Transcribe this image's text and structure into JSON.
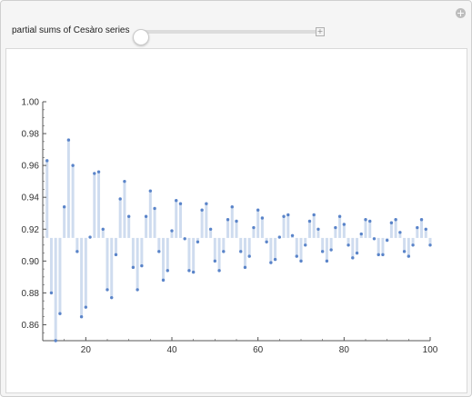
{
  "control": {
    "label": "partial sums of Cesàro series",
    "slider_value_fraction": 0.0
  },
  "icons": {
    "corner": "plus-circle-icon",
    "slider_increment": "plus-icon"
  },
  "colors": {
    "points": "#5a84c9",
    "stems": "#cfdcef",
    "axis": "#555555"
  },
  "chart_data": {
    "type": "scatter",
    "title": "",
    "xlabel": "",
    "ylabel": "",
    "xlim": [
      10,
      100
    ],
    "ylim": [
      0.85,
      1.0
    ],
    "baseline": 0.9145,
    "grid": false,
    "x_ticks": [
      20,
      40,
      60,
      80,
      100
    ],
    "y_ticks": [
      0.86,
      0.88,
      0.9,
      0.92,
      0.94,
      0.96,
      0.98,
      1.0
    ],
    "x_tick_labels": [
      "20",
      "40",
      "60",
      "80",
      "100"
    ],
    "y_tick_labels": [
      "0.86",
      "0.88",
      "0.90",
      "0.92",
      "0.94",
      "0.96",
      "0.98",
      "1.00"
    ],
    "series": [
      {
        "x": [
          11,
          12,
          13,
          14,
          15,
          16,
          17,
          18,
          19,
          20,
          21,
          22,
          23,
          24,
          25,
          26,
          27,
          28,
          29,
          30,
          31,
          32,
          33,
          34,
          35,
          36,
          37,
          38,
          39,
          40,
          41,
          42,
          43,
          44,
          45,
          46,
          47,
          48,
          49,
          50,
          51,
          52,
          53,
          54,
          55,
          56,
          57,
          58,
          59,
          60,
          61,
          62,
          63,
          64,
          65,
          66,
          67,
          68,
          69,
          70,
          71,
          72,
          73,
          74,
          75,
          76,
          77,
          78,
          79,
          80,
          81,
          82,
          83,
          84,
          85,
          86,
          87,
          88,
          89,
          90,
          91,
          92,
          93,
          94,
          95,
          96,
          97,
          98,
          99,
          100
        ],
        "y": [
          0.963,
          0.88,
          0.85,
          0.867,
          0.934,
          0.976,
          0.96,
          0.906,
          0.865,
          0.871,
          0.915,
          0.955,
          0.956,
          0.92,
          0.882,
          0.877,
          0.904,
          0.939,
          0.95,
          0.928,
          0.896,
          0.882,
          0.897,
          0.928,
          0.944,
          0.933,
          0.906,
          0.888,
          0.894,
          0.919,
          0.938,
          0.936,
          0.914,
          0.894,
          0.893,
          0.912,
          0.932,
          0.936,
          0.92,
          0.9,
          0.894,
          0.906,
          0.926,
          0.934,
          0.925,
          0.906,
          0.896,
          0.903,
          0.921,
          0.932,
          0.927,
          0.912,
          0.899,
          0.901,
          0.915,
          0.928,
          0.929,
          0.916,
          0.903,
          0.9,
          0.91,
          0.925,
          0.929,
          0.92,
          0.906,
          0.9,
          0.907,
          0.921,
          0.928,
          0.923,
          0.91,
          0.902,
          0.905,
          0.917,
          0.926,
          0.925,
          0.914,
          0.904,
          0.904,
          0.913,
          0.924,
          0.926,
          0.918,
          0.906,
          0.903,
          0.91,
          0.921,
          0.926,
          0.92,
          0.91
        ]
      }
    ]
  }
}
